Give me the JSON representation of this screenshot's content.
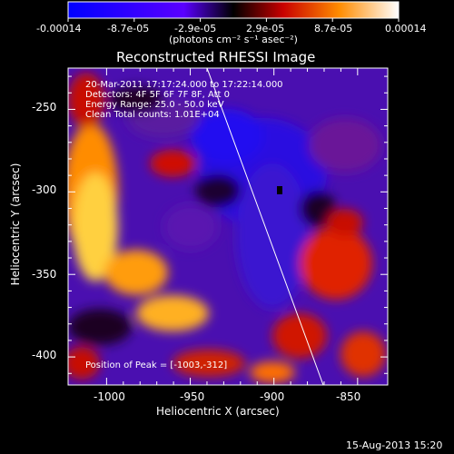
{
  "chart_data": {
    "type": "heatmap",
    "title": "Reconstructed RHESSI Image",
    "xlabel": "Heliocentric X (arcsec)",
    "ylabel": "Heliocentric Y (arcsec)",
    "xlim": [
      -1023,
      -832
    ],
    "ylim": [
      -417,
      -225
    ],
    "x_ticks": [
      "-1000",
      "-950",
      "-900",
      "-850"
    ],
    "x_tick_values": [
      -1000,
      -950,
      -900,
      -850
    ],
    "y_ticks": [
      "-250",
      "-300",
      "-350",
      "-400"
    ],
    "y_tick_values": [
      -250,
      -300,
      -350,
      -400
    ],
    "colorbar": {
      "ticks": [
        "-0.00014",
        "-8.7e-05",
        "-2.9e-05",
        "2.9e-05",
        "8.7e-05",
        "0.00014"
      ],
      "unit_label": "(photons cm⁻² s⁻¹ asec⁻²)",
      "range": [
        -0.00014,
        0.00014
      ]
    },
    "annotations": {
      "time": "20-Mar-2011 17:17:24.000 to 17:22:14.000",
      "detectors": "Detectors: 4F 5F 6F 7F 8F, Att 0",
      "energy": "Energy Range: 25.0 - 50.0 keV",
      "clean": "Clean    Total counts: 1.01E+04",
      "peak": "Position of Peak = [-1003,-312]"
    },
    "peak_position": [
      -1003,
      -312
    ],
    "grid": false
  },
  "footer": {
    "date": "15-Aug-2013 15:20"
  },
  "colors": {
    "background": "#000000",
    "text": "#ffffff"
  }
}
